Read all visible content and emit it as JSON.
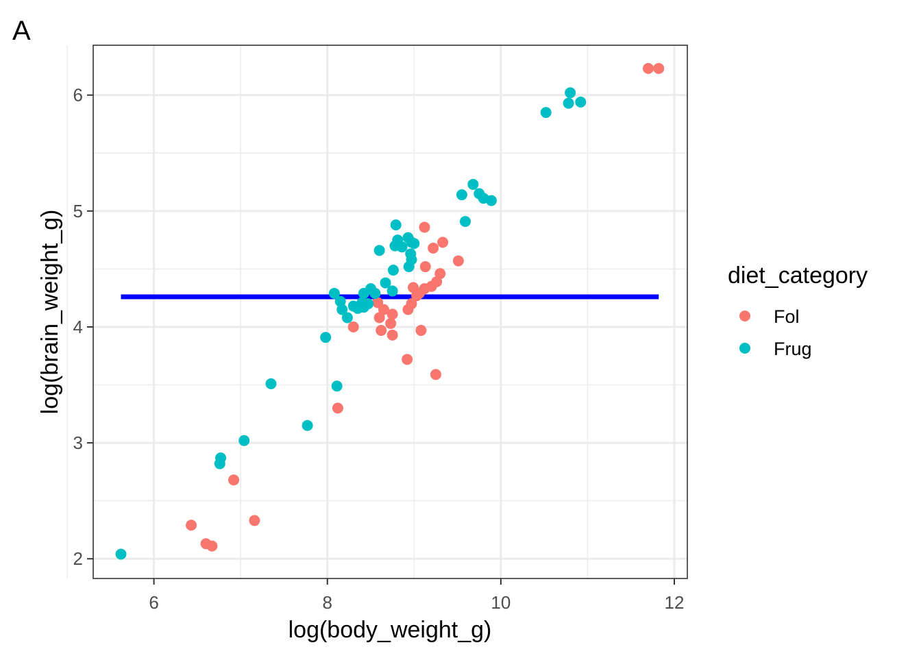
{
  "panel_label": "A",
  "chart_data": {
    "type": "scatter",
    "title": "",
    "xlabel": "log(body_weight_g)",
    "ylabel": "log(brain_weight_g)",
    "xlim": [
      5.3,
      12.15
    ],
    "ylim": [
      1.83,
      6.43
    ],
    "x_ticks": [
      6,
      8,
      10,
      12
    ],
    "x_tick_labels": [
      "6",
      "8",
      "10",
      "12"
    ],
    "x_minor_ticks": [
      5,
      7,
      9,
      11
    ],
    "y_ticks": [
      2,
      3,
      4,
      5,
      6
    ],
    "y_tick_labels": [
      "2",
      "3",
      "4",
      "5",
      "6"
    ],
    "y_minor_ticks": [
      2.5,
      3.5,
      4.5,
      5.5
    ],
    "grid": true,
    "legend": {
      "title": "diet_category",
      "position": "right",
      "entries": [
        {
          "label": "Fol",
          "color": "#F8766D"
        },
        {
          "label": "Frug",
          "color": "#00BFC4"
        }
      ]
    },
    "hline": {
      "y": 4.26,
      "x_start": 5.62,
      "x_end": 11.82,
      "color": "#0000FF"
    },
    "series": [
      {
        "name": "Fol",
        "color": "#F8766D",
        "points": [
          [
            11.7,
            6.23
          ],
          [
            11.82,
            6.23
          ],
          [
            9.12,
            4.86
          ],
          [
            9.22,
            4.68
          ],
          [
            9.33,
            4.73
          ],
          [
            9.51,
            4.57
          ],
          [
            9.13,
            4.52
          ],
          [
            9.3,
            4.46
          ],
          [
            9.26,
            4.39
          ],
          [
            9.2,
            4.35
          ],
          [
            9.12,
            4.33
          ],
          [
            8.99,
            4.34
          ],
          [
            9.06,
            4.29
          ],
          [
            9.03,
            4.27
          ],
          [
            8.97,
            4.2
          ],
          [
            8.93,
            4.15
          ],
          [
            8.58,
            4.21
          ],
          [
            8.65,
            4.15
          ],
          [
            8.6,
            4.08
          ],
          [
            8.75,
            4.11
          ],
          [
            8.73,
            4.03
          ],
          [
            8.3,
            4.0
          ],
          [
            8.62,
            3.97
          ],
          [
            8.75,
            3.93
          ],
          [
            9.08,
            3.97
          ],
          [
            8.92,
            3.72
          ],
          [
            9.25,
            3.59
          ],
          [
            8.12,
            3.3
          ],
          [
            6.92,
            2.68
          ],
          [
            7.16,
            2.33
          ],
          [
            6.43,
            2.29
          ],
          [
            6.6,
            2.13
          ],
          [
            6.67,
            2.11
          ]
        ]
      },
      {
        "name": "Frug",
        "color": "#00BFC4",
        "points": [
          [
            10.8,
            6.02
          ],
          [
            10.78,
            5.93
          ],
          [
            10.92,
            5.94
          ],
          [
            10.52,
            5.85
          ],
          [
            9.68,
            5.23
          ],
          [
            9.55,
            5.14
          ],
          [
            9.75,
            5.15
          ],
          [
            9.8,
            5.11
          ],
          [
            9.89,
            5.09
          ],
          [
            9.59,
            4.91
          ],
          [
            8.79,
            4.88
          ],
          [
            8.93,
            4.77
          ],
          [
            8.81,
            4.75
          ],
          [
            8.97,
            4.73
          ],
          [
            9.0,
            4.72
          ],
          [
            8.78,
            4.7
          ],
          [
            8.86,
            4.69
          ],
          [
            8.6,
            4.66
          ],
          [
            8.96,
            4.63
          ],
          [
            8.97,
            4.58
          ],
          [
            8.76,
            4.49
          ],
          [
            8.94,
            4.52
          ],
          [
            8.5,
            4.33
          ],
          [
            8.55,
            4.29
          ],
          [
            8.67,
            4.38
          ],
          [
            8.75,
            4.31
          ],
          [
            8.42,
            4.29
          ],
          [
            8.08,
            4.29
          ],
          [
            8.15,
            4.22
          ],
          [
            8.4,
            4.21
          ],
          [
            8.47,
            4.2
          ],
          [
            8.35,
            4.16
          ],
          [
            8.3,
            4.18
          ],
          [
            8.42,
            4.17
          ],
          [
            8.17,
            4.15
          ],
          [
            8.23,
            4.08
          ],
          [
            7.98,
            3.91
          ],
          [
            7.35,
            3.51
          ],
          [
            8.11,
            3.49
          ],
          [
            7.77,
            3.15
          ],
          [
            7.04,
            3.02
          ],
          [
            6.77,
            2.87
          ],
          [
            6.76,
            2.82
          ],
          [
            5.62,
            2.04
          ]
        ]
      }
    ]
  }
}
